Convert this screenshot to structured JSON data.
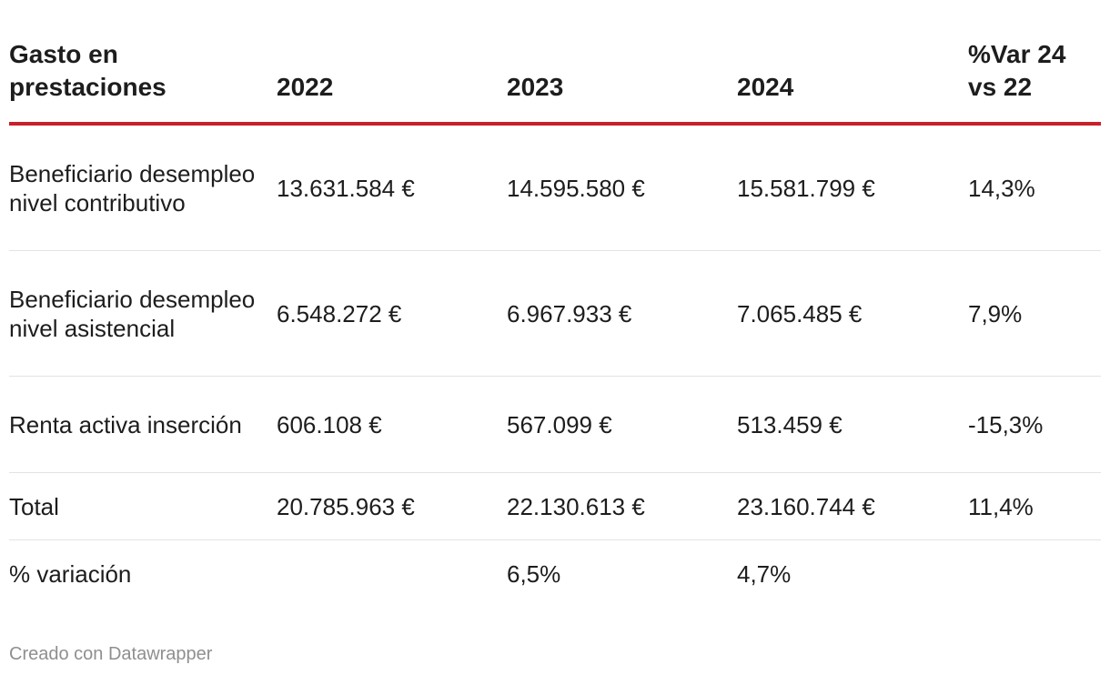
{
  "chart_data": {
    "type": "table",
    "columns": [
      "Gasto en prestaciones",
      "2022",
      "2023",
      "2024",
      "%Var 24 vs 22"
    ],
    "rows": [
      [
        "Beneficiario desempleo nivel contributivo",
        "13.631.584 €",
        "14.595.580 €",
        "15.581.799 €",
        "14,3%"
      ],
      [
        "Beneficiario desempleo nivel asistencial",
        "6.548.272 €",
        "6.967.933 €",
        "7.065.485 €",
        "7,9%"
      ],
      [
        "Renta activa inserción",
        "606.108 €",
        "567.099 €",
        "513.459 €",
        "-15,3%"
      ],
      [
        "Total",
        "20.785.963 €",
        "22.130.613 €",
        "23.160.744 €",
        "11,4%"
      ],
      [
        "% variación",
        "",
        "6,5%",
        "4,7%",
        ""
      ]
    ]
  },
  "colors": {
    "header_rule": "#c8202a",
    "row_divider": "#e3e3e3",
    "text": "#1d1d1d",
    "footer_text": "#8f8f8f"
  },
  "footer": {
    "credit": "Creado con Datawrapper"
  }
}
